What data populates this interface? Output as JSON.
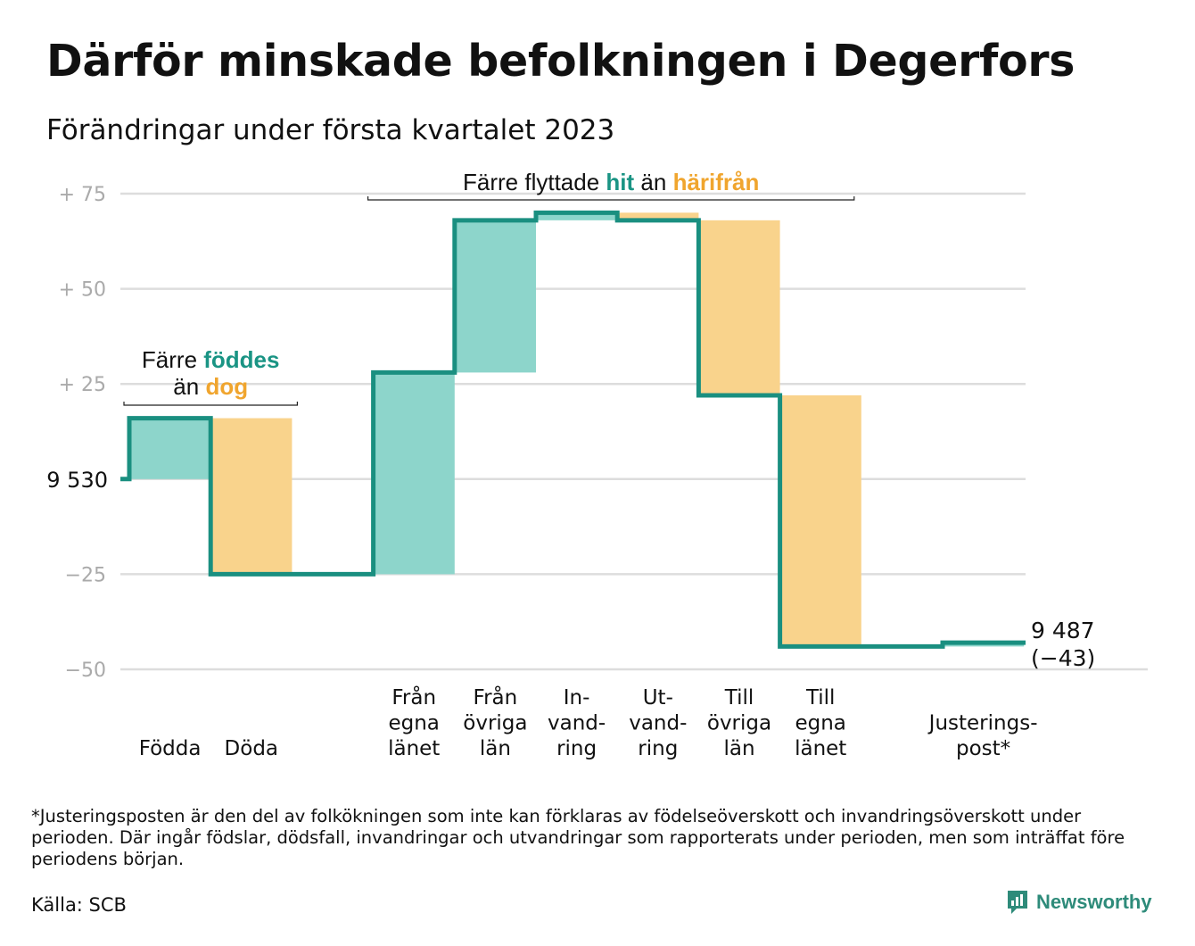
{
  "title": "Därför minskade befolkningen i Degerfors",
  "subtitle": "Förändringar under första kvartalet 2023",
  "colors": {
    "in": "#8dd5cb",
    "out": "#f9d38c",
    "line": "#1a8f80",
    "hit_text": "#1a9484",
    "out_text": "#f0a52e",
    "grid": "#dddddd",
    "tick": "#aaaaaa"
  },
  "chart_data": {
    "type": "waterfall",
    "baseline_label": "9 530",
    "ylim": [
      -50,
      75
    ],
    "y_ticks": [
      {
        "value": 75,
        "label": "+ 75"
      },
      {
        "value": 50,
        "label": "+ 50"
      },
      {
        "value": 25,
        "label": "+ 25"
      },
      {
        "value": 0,
        "label": ""
      },
      {
        "value": -25,
        "label": "−25"
      },
      {
        "value": -50,
        "label": "−50"
      }
    ],
    "steps": [
      {
        "category": [
          "Födda"
        ],
        "change": 16,
        "kind": "in"
      },
      {
        "category": [
          "Döda"
        ],
        "change": -41,
        "kind": "out"
      },
      {
        "category": [],
        "change": 0,
        "kind": "none"
      },
      {
        "category": [
          "Från",
          "egna",
          "länet"
        ],
        "change": 53,
        "kind": "in"
      },
      {
        "category": [
          "Från",
          "övriga",
          "län"
        ],
        "change": 40,
        "kind": "in"
      },
      {
        "category": [
          "In-",
          "vand-",
          "ring"
        ],
        "change": 2,
        "kind": "in"
      },
      {
        "category": [
          "Ut-",
          "vand-",
          "ring"
        ],
        "change": -2,
        "kind": "out"
      },
      {
        "category": [
          "Till",
          "övriga",
          "län"
        ],
        "change": -46,
        "kind": "out"
      },
      {
        "category": [
          "Till",
          "egna",
          "länet"
        ],
        "change": -66,
        "kind": "out"
      },
      {
        "category": [],
        "change": 0,
        "kind": "none"
      },
      {
        "category": [
          "Justerings-",
          "post*"
        ],
        "change": 1,
        "kind": "in"
      }
    ],
    "end_label": [
      "9 487",
      "(−43)"
    ],
    "annotations": {
      "births": {
        "line1": [
          "Färre ",
          "föddes"
        ],
        "line2": [
          "än ",
          "dog"
        ]
      },
      "migration": [
        "Färre flyttade ",
        "hit",
        " än ",
        "härifrån"
      ]
    }
  },
  "footnote": "*Justeringsposten är den del av folkökningen som inte kan förklaras av födelseöverskott och invandringsöverskott under perioden. Där ingår födslar, dödsfall, invandringar och utvandringar som rapporterats under perioden, men som inträffat före periodens början.",
  "source": "Källa: SCB",
  "brand": "Newsworthy",
  "brand_icon": "newsworthy-logo-icon"
}
